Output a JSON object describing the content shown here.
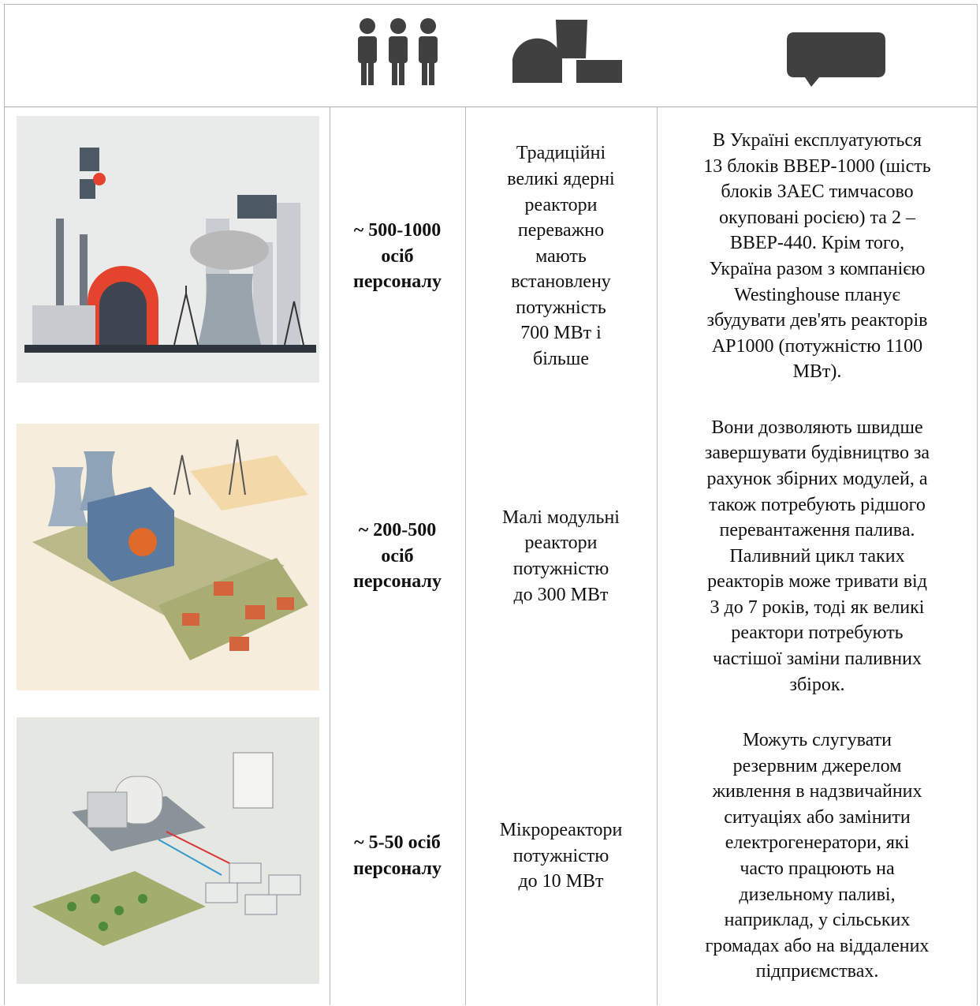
{
  "rows": [
    {
      "staff": [
        "~ 500-1000",
        "осіб",
        "персоналу"
      ],
      "type": [
        "Традиційні",
        "великі ядерні",
        "реактори",
        "переважно",
        "мають",
        "встановлену",
        "потужність",
        "700 МВт і",
        "більше"
      ],
      "description": [
        "В Україні експлуатуються",
        "13 блоків ВВЕР-1000 (шість",
        "блоків ЗАЕС тимчасово",
        "окуповані росією) та 2 –",
        "ВВЕР-440. Крім того,",
        "Україна разом з компанією",
        "Westinghouse планує",
        "збудувати дев'ять реакторів",
        "AP1000 (потужністю 1100",
        "МВт)."
      ]
    },
    {
      "staff": [
        "~ 200-500",
        "осіб",
        "персоналу"
      ],
      "type": [
        "Малі модульні",
        "реактори",
        "потужністю",
        "до 300 МВт"
      ],
      "description": [
        "Вони дозволяють швидше",
        "завершувати будівництво за",
        "рахунок збірних модулей, а",
        "також потребують рідшого",
        "перевантаження палива.",
        "Паливний цикл таких",
        "реакторів може тривати від",
        "3 до 7 років, тоді як великі",
        "реактори потребують",
        "частішої заміни паливних",
        "збірок."
      ]
    },
    {
      "staff": [
        "~ 5-50 осіб",
        "персоналу"
      ],
      "type": [
        "Мікрореактори",
        "потужністю",
        "до 10 МВт"
      ],
      "description": [
        "Можуть слугувати",
        "резервним джерелом",
        "живлення в надзвичайних",
        "ситуаціях або замінити",
        "електрогенератори, які",
        "часто працюють на",
        "дизельному паливі,",
        "наприклад, у сільських",
        "громадах або на віддалених",
        "підприємствах."
      ]
    }
  ]
}
